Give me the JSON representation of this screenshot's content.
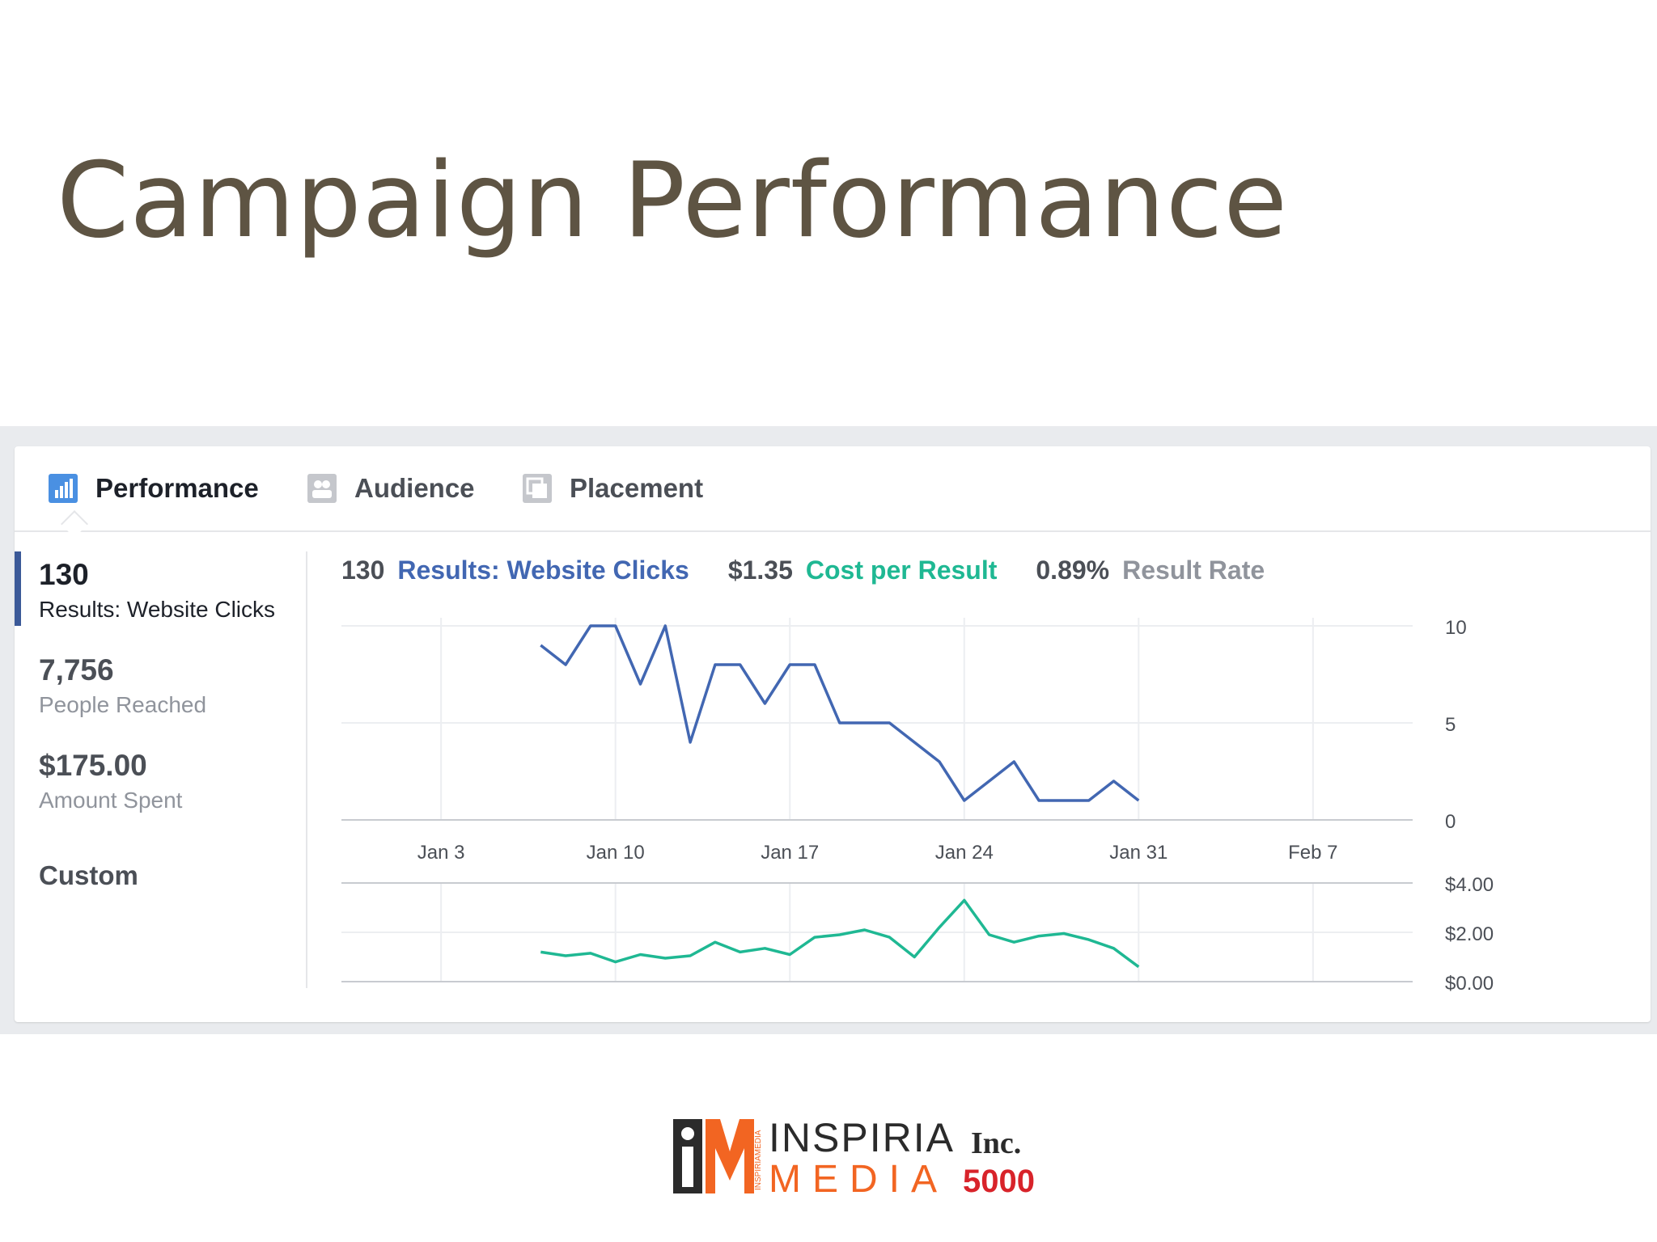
{
  "slide": {
    "title": "Campaign Performance"
  },
  "tabs": [
    {
      "label": "Performance",
      "icon": "bar-chart-icon",
      "active": true
    },
    {
      "label": "Audience",
      "icon": "people-icon",
      "active": false
    },
    {
      "label": "Placement",
      "icon": "placement-icon",
      "active": false
    }
  ],
  "sidebar": {
    "metrics": [
      {
        "value": "130",
        "label": "Results: Website Clicks"
      },
      {
        "value": "7,756",
        "label": "People Reached"
      },
      {
        "value": "$175.00",
        "label": "Amount Spent"
      }
    ],
    "custom_label": "Custom"
  },
  "summary": {
    "results_value": "130",
    "results_label": "Results: Website Clicks",
    "cost_value": "$1.35",
    "cost_label": "Cost per Result",
    "rate_value": "0.89%",
    "rate_label": "Result Rate"
  },
  "colors": {
    "results": "#4267b2",
    "cost": "#1fb893",
    "muted": "#90949c",
    "title": "#5e5443"
  },
  "chart_data": [
    {
      "type": "line",
      "x_ticks": [
        "Jan 3",
        "Jan 10",
        "Jan 17",
        "Jan 24",
        "Jan 31",
        "Feb 7"
      ],
      "x_tick_days": [
        3,
        10,
        17,
        24,
        31,
        38
      ],
      "y_ticks": [
        "10",
        "5",
        "0"
      ],
      "ylim": [
        0,
        10
      ],
      "series": [
        {
          "x": [
            7,
            8,
            9,
            10,
            11,
            12,
            13,
            14,
            15,
            16,
            17,
            18,
            19,
            20,
            21,
            22,
            23,
            24,
            25,
            26,
            27,
            28,
            29,
            30,
            31
          ],
          "values": [
            9,
            8,
            10,
            10,
            7,
            10,
            4,
            8,
            8,
            6,
            8,
            8,
            5,
            5,
            5,
            4,
            3,
            1,
            2,
            3,
            1,
            1,
            1,
            2,
            1
          ]
        }
      ]
    },
    {
      "type": "line",
      "y_ticks": [
        "$4.00",
        "$2.00",
        "$0.00"
      ],
      "ylim": [
        0,
        4
      ],
      "series": [
        {
          "x": [
            7,
            8,
            9,
            10,
            11,
            12,
            13,
            14,
            15,
            16,
            17,
            18,
            19,
            20,
            21,
            22,
            23,
            24,
            25,
            26,
            27,
            28,
            29,
            30,
            31
          ],
          "values": [
            1.2,
            1.05,
            1.15,
            0.8,
            1.1,
            0.95,
            1.05,
            1.6,
            1.2,
            1.35,
            1.1,
            1.8,
            1.9,
            2.1,
            1.8,
            1.0,
            2.2,
            3.3,
            1.9,
            1.6,
            1.85,
            1.95,
            1.7,
            1.35,
            0.6
          ]
        }
      ]
    }
  ],
  "logo": {
    "mark": "iM",
    "brand_line1": "INSPIRIA",
    "brand_line2": "MEDIA",
    "vertical_text": "INSPIRIAMEDIA",
    "badge_line1": "Inc.",
    "badge_line2": "5000"
  }
}
